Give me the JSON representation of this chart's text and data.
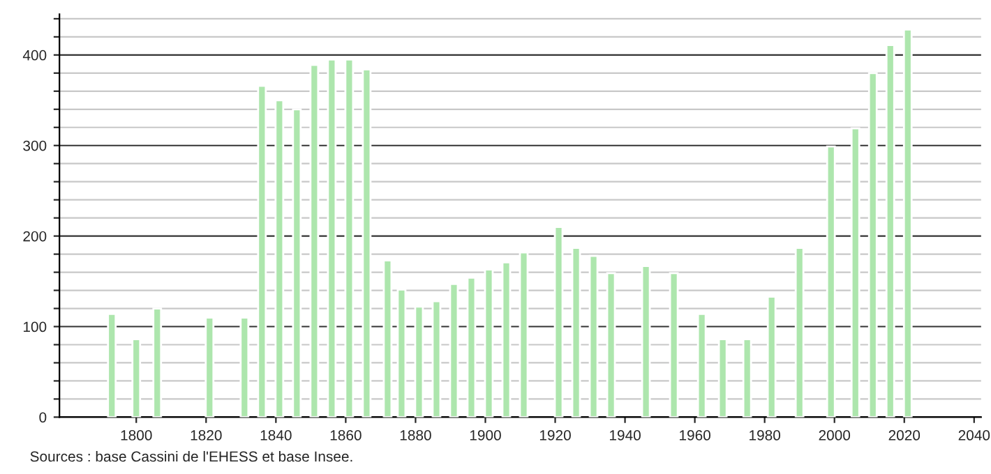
{
  "chart_data": {
    "type": "bar",
    "x": [
      1793,
      1800,
      1806,
      1821,
      1831,
      1836,
      1841,
      1846,
      1851,
      1856,
      1861,
      1866,
      1872,
      1876,
      1881,
      1886,
      1891,
      1896,
      1901,
      1906,
      1911,
      1921,
      1926,
      1931,
      1936,
      1946,
      1954,
      1962,
      1968,
      1975,
      1982,
      1990,
      1999,
      2006,
      2011,
      2016,
      2021
    ],
    "values": [
      114,
      86,
      120,
      110,
      110,
      366,
      350,
      340,
      389,
      395,
      395,
      384,
      173,
      141,
      122,
      128,
      147,
      154,
      163,
      171,
      182,
      210,
      187,
      178,
      159,
      167,
      159,
      114,
      86,
      86,
      133,
      187,
      299,
      319,
      380,
      411,
      428
    ],
    "color": "#ade6ad",
    "xlim": [
      1778,
      2042
    ],
    "xticks": [
      1800,
      1820,
      1840,
      1860,
      1880,
      1900,
      1920,
      1940,
      1960,
      1980,
      2000,
      2020,
      2040
    ],
    "ylim": [
      0,
      445
    ],
    "yticks": [
      0,
      {
        "value": 20,
        "label": null
      },
      {
        "value": 40,
        "label": null
      },
      {
        "value": 60,
        "label": null
      },
      {
        "value": 80,
        "label": null
      },
      100,
      {
        "value": 120,
        "label": null
      },
      {
        "value": 140,
        "label": null
      },
      {
        "value": 160,
        "label": null
      },
      {
        "value": 180,
        "label": null
      },
      200,
      {
        "value": 220,
        "label": null
      },
      {
        "value": 240,
        "label": null
      },
      {
        "value": 260,
        "label": null
      },
      {
        "value": 280,
        "label": null
      },
      300,
      {
        "value": 320,
        "label": null
      },
      {
        "value": 340,
        "label": null
      },
      {
        "value": 360,
        "label": null
      },
      {
        "value": 380,
        "label": null
      },
      400,
      {
        "value": 420,
        "label": null
      },
      {
        "value": 440,
        "label": null
      }
    ],
    "grid": "y",
    "annotations": [
      "Sources : base Cassini de l'EHESS et base Insee."
    ]
  }
}
